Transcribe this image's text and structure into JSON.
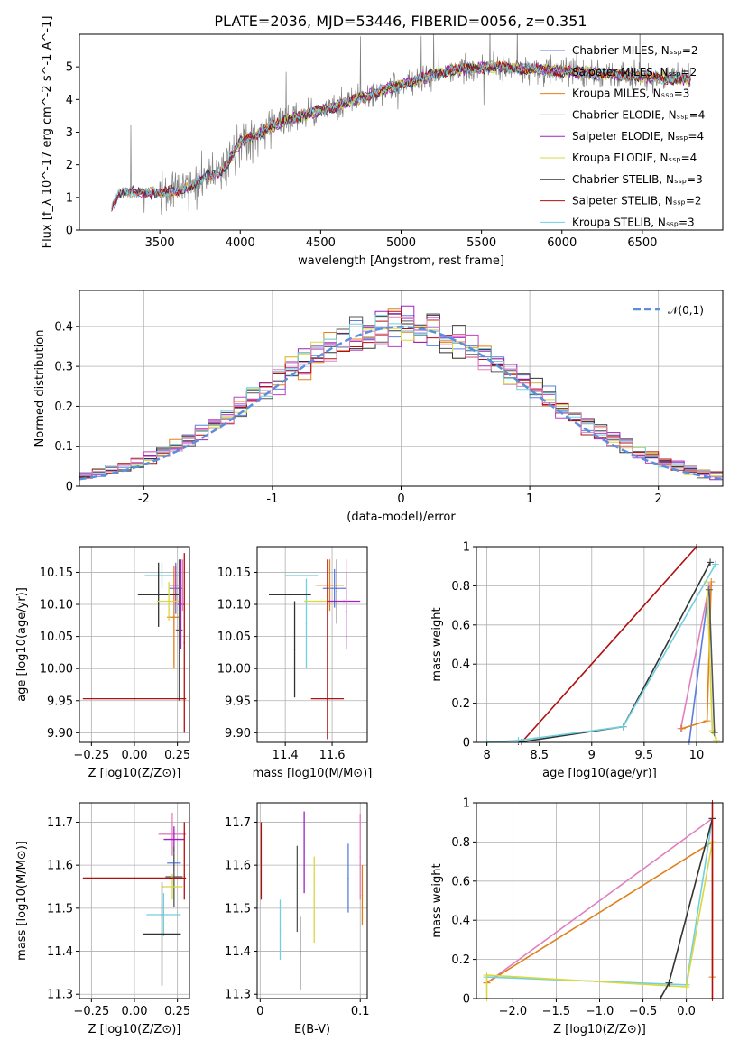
{
  "title": "PLATE=2036, MJD=53446, FIBERID=0056, z=0.351",
  "colors": {
    "chabrier_miles": "#5b7fe0",
    "salpeter_miles": "#c040c0",
    "kroupa_miles": "#e0801a",
    "chabrier_elodie": "#555555",
    "salpeter_elodie": "#a020c0",
    "kroupa_elodie": "#d8d840",
    "chabrier_stelib": "#333333",
    "salpeter_stelib": "#b01010",
    "kroupa_stelib": "#70d0e0",
    "pink": "#e080c0",
    "data": "#808080",
    "normal": "#5b8fdb"
  },
  "chart_data": [
    {
      "type": "line",
      "id": "spectrum",
      "title": "PLATE=2036, MJD=53446, FIBERID=0056, z=0.351",
      "xlabel": "wavelength [Angstrom, rest frame]",
      "ylabel": "Flux [f_λ 10^-17 erg cm^-2 s^-1 A^-1]",
      "xlim": [
        3000,
        7000
      ],
      "ylim": [
        0,
        6
      ],
      "xticks": [
        3500,
        4000,
        4500,
        5000,
        5500,
        6000,
        6500
      ],
      "yticks": [
        0,
        1,
        2,
        3,
        4,
        5
      ],
      "legend_position": "top-right",
      "series": [
        {
          "name": "Chabrier MILES, N_SSP=2"
        },
        {
          "name": "Salpeter MILES, N_SSP=2"
        },
        {
          "name": "Kroupa MILES, N_SSP=3"
        },
        {
          "name": "Chabrier ELODIE, N_SSP=4"
        },
        {
          "name": "Salpeter ELODIE, N_SSP=4"
        },
        {
          "name": "Kroupa ELODIE, N_SSP=4"
        },
        {
          "name": "Chabrier STELIB, N_SSP=3"
        },
        {
          "name": "Salpeter STELIB, N_SSP=2"
        },
        {
          "name": "Kroupa STELIB, N_SSP=3"
        }
      ],
      "continuum": {
        "x": [
          3200,
          3250,
          3400,
          3500,
          3700,
          3900,
          4000,
          4300,
          4600,
          4900,
          5100,
          5300,
          5600,
          5900,
          6200,
          6500,
          6800
        ],
        "y": [
          0.7,
          1.1,
          1.2,
          1.1,
          1.35,
          1.9,
          2.7,
          3.4,
          3.8,
          4.3,
          4.6,
          4.9,
          5.0,
          4.9,
          4.8,
          4.7,
          4.6
        ]
      }
    },
    {
      "type": "bar",
      "id": "residuals",
      "xlabel": "(data-model)/error",
      "ylabel": "Normed distribution",
      "xlim": [
        -2.5,
        2.5
      ],
      "ylim": [
        0,
        0.49
      ],
      "xticks": [
        -2,
        -1,
        0,
        1,
        2
      ],
      "yticks": [
        0.0,
        0.1,
        0.2,
        0.3,
        0.4
      ],
      "legend_position": "top-right",
      "legend": "𝒩(0,1)",
      "bin_width": 0.1
    },
    {
      "type": "scatter",
      "id": "age_vs_Z",
      "xlabel": "Z [log10(Z/Z⊙)]",
      "ylabel": "age  [log10(age/yr)]",
      "xlim": [
        -0.32,
        0.32
      ],
      "ylim": [
        9.885,
        10.19
      ],
      "xticks": [
        -0.25,
        0.0,
        0.25
      ],
      "xticklabels": [
        "−0.25",
        "0.00",
        "0.25"
      ],
      "yticks": [
        9.9,
        9.95,
        10.0,
        10.05,
        10.1,
        10.15
      ],
      "yticklabels": [
        "9.90",
        "9.95",
        "10.00",
        "10.05",
        "10.10",
        "10.15"
      ],
      "points": [
        {
          "series": "kroupa_stelib",
          "x": 0.16,
          "xerr": 0.1,
          "y": 10.145,
          "yerr": 0.02
        },
        {
          "series": "kroupa_miles",
          "x": 0.23,
          "xerr": 0.04,
          "y": 10.08,
          "yerr": 0.08
        },
        {
          "series": "chabrier_miles",
          "x": 0.24,
          "xerr": 0.04,
          "y": 10.125,
          "yerr": 0.04
        },
        {
          "series": "salpeter_miles",
          "x": 0.24,
          "xerr": 0.04,
          "y": 10.13,
          "yerr": 0.03
        },
        {
          "series": "chabrier_stelib",
          "x": 0.14,
          "xerr": 0.12,
          "y": 10.115,
          "yerr": 0.05
        },
        {
          "series": "kroupa_elodie",
          "x": 0.2,
          "xerr": 0.07,
          "y": 10.105,
          "yerr": 0.03
        },
        {
          "series": "chabrier_elodie",
          "x": 0.26,
          "xerr": 0.02,
          "y": 10.06,
          "yerr": 0.11
        },
        {
          "series": "salpeter_elodie",
          "x": 0.27,
          "xerr": 0.02,
          "y": 10.1,
          "yerr": 0.07
        },
        {
          "series": "salpeter_stelib",
          "x": 0.0,
          "xerr": 0.3,
          "y": 9.953,
          "yerr": 0.0
        },
        {
          "series": "salpeter_stelib",
          "x": 0.29,
          "xerr": 0.0,
          "y": 10.04,
          "yerr": 0.14
        },
        {
          "series": "pink",
          "x": 0.28,
          "xerr": 0.02,
          "y": 10.13,
          "yerr": 0.04
        }
      ]
    },
    {
      "type": "scatter",
      "id": "age_vs_mass",
      "xlabel": "mass [log10(M/M⊙)]",
      "ylabel": "",
      "xlim": [
        11.28,
        11.75
      ],
      "ylim": [
        9.885,
        10.19
      ],
      "xticks": [
        11.4,
        11.6
      ],
      "yticks": [
        9.9,
        9.95,
        10.0,
        10.05,
        10.1,
        10.15
      ],
      "yticklabels": [
        "9.90",
        "9.95",
        "10.00",
        "10.05",
        "10.10",
        "10.15"
      ],
      "points": [
        {
          "series": "kroupa_stelib",
          "x": 11.47,
          "xerr": 0.07,
          "y": 10.145,
          "yerr": 0.0
        },
        {
          "series": "kroupa_stelib",
          "x": 11.49,
          "xerr": 0.0,
          "y": 10.07,
          "yerr": 0.07
        },
        {
          "series": "chabrier_stelib",
          "x": 11.42,
          "xerr": 0.09,
          "y": 10.115,
          "yerr": 0.0
        },
        {
          "series": "chabrier_stelib",
          "x": 11.44,
          "xerr": 0.0,
          "y": 10.03,
          "yerr": 0.075
        },
        {
          "series": "kroupa_elodie",
          "x": 11.55,
          "xerr": 0.07,
          "y": 10.105,
          "yerr": 0.0
        },
        {
          "series": "chabrier_miles",
          "x": 11.61,
          "xerr": 0.05,
          "y": 10.125,
          "yerr": 0.03
        },
        {
          "series": "kroupa_miles",
          "x": 11.59,
          "xerr": 0.06,
          "y": 10.13,
          "yerr": 0.04
        },
        {
          "series": "salpeter_elodie",
          "x": 11.65,
          "xerr": 0.07,
          "y": 10.105,
          "yerr": 0.0
        },
        {
          "series": "salpeter_elodie",
          "x": 11.66,
          "xerr": 0.0,
          "y": 10.09,
          "yerr": 0.06
        },
        {
          "series": "pink",
          "x": 11.66,
          "xerr": 0.0,
          "y": 10.13,
          "yerr": 0.04
        },
        {
          "series": "chabrier_elodie",
          "x": 11.62,
          "xerr": 0.0,
          "y": 10.12,
          "yerr": 0.05
        },
        {
          "series": "salpeter_stelib",
          "x": 11.58,
          "xerr": 0.07,
          "y": 9.953,
          "yerr": 0.0
        },
        {
          "series": "salpeter_stelib",
          "x": 11.58,
          "xerr": 0.0,
          "y": 10.03,
          "yerr": 0.14
        }
      ]
    },
    {
      "type": "line",
      "id": "weight_vs_age",
      "xlabel": "age  [log10(age/yr)]",
      "ylabel": "mass weight",
      "xlim": [
        7.9,
        10.25
      ],
      "ylim": [
        0,
        1.0
      ],
      "xticks": [
        8.0,
        8.5,
        9.0,
        9.5,
        10.0
      ],
      "yticks": [
        0.0,
        0.2,
        0.4,
        0.6,
        0.8,
        1.0
      ],
      "series": [
        {
          "color": "salpeter_stelib",
          "x": [
            8.33,
            10.0
          ],
          "y": [
            0.0,
            1.0
          ]
        },
        {
          "color": "chabrier_stelib",
          "x": [
            8.3,
            9.3,
            10.13
          ],
          "y": [
            0.0,
            0.08,
            0.92
          ]
        },
        {
          "color": "kroupa_stelib",
          "x": [
            8.0,
            8.3,
            9.3,
            10.18
          ],
          "y": [
            0.0,
            0.01,
            0.08,
            0.91
          ]
        },
        {
          "color": "chabrier_miles",
          "x": [
            9.93,
            10.12
          ],
          "y": [
            0.0,
            0.8
          ]
        },
        {
          "color": "pink",
          "x": [
            9.85,
            10.12
          ],
          "y": [
            0.07,
            0.8
          ]
        },
        {
          "color": "kroupa_miles",
          "x": [
            9.86,
            10.1,
            10.14
          ],
          "y": [
            0.07,
            0.11,
            0.82
          ]
        },
        {
          "color": "kroupa_elodie",
          "x": [
            10.1,
            10.15,
            10.19
          ],
          "y": [
            0.82,
            0.06,
            0.01
          ]
        },
        {
          "color": "chabrier_elodie",
          "x": [
            10.12,
            10.17
          ],
          "y": [
            0.78,
            0.05
          ]
        }
      ]
    },
    {
      "type": "scatter",
      "id": "mass_vs_Z",
      "xlabel": "Z [log10(Z/Z⊙)]",
      "ylabel": "mass [log10(M/M⊙)]",
      "xlim": [
        -0.32,
        0.32
      ],
      "ylim": [
        11.29,
        11.745
      ],
      "xticks": [
        -0.25,
        0.0,
        0.25
      ],
      "xticklabels": [
        "−0.25",
        "0.00",
        "0.25"
      ],
      "yticks": [
        11.3,
        11.4,
        11.5,
        11.6,
        11.7
      ],
      "points": [
        {
          "series": "pink",
          "x": 0.22,
          "xerr": 0.08,
          "y": 11.672,
          "yerr": 0.05
        },
        {
          "series": "salpeter_elodie",
          "x": 0.23,
          "xerr": 0.06,
          "y": 11.66,
          "yerr": 0.03
        },
        {
          "series": "chabrier_miles",
          "x": 0.23,
          "xerr": 0.04,
          "y": 11.605,
          "yerr": 0.02
        },
        {
          "series": "chabrier_elodie",
          "x": 0.23,
          "xerr": 0.05,
          "y": 11.573,
          "yerr": 0.07
        },
        {
          "series": "kroupa_elodie",
          "x": 0.22,
          "xerr": 0.06,
          "y": 11.55,
          "yerr": 0.03
        },
        {
          "series": "kroupa_stelib",
          "x": 0.17,
          "xerr": 0.1,
          "y": 11.485,
          "yerr": 0.05
        },
        {
          "series": "chabrier_stelib",
          "x": 0.16,
          "xerr": 0.11,
          "y": 11.44,
          "yerr": 0.12
        },
        {
          "series": "salpeter_stelib",
          "x": 0.0,
          "xerr": 0.3,
          "y": 11.57,
          "yerr": 0.0
        },
        {
          "series": "salpeter_stelib",
          "x": 0.29,
          "xerr": 0.0,
          "y": 11.61,
          "yerr": 0.09
        }
      ]
    },
    {
      "type": "scatter",
      "id": "mass_vs_EBV",
      "xlabel": "E(B-V)",
      "ylabel": "",
      "xlim": [
        -0.003,
        0.107
      ],
      "ylim": [
        11.29,
        11.745
      ],
      "xticks": [
        0.0,
        0.1
      ],
      "yticks": [
        11.3,
        11.4,
        11.5,
        11.6,
        11.7
      ],
      "points": [
        {
          "series": "salpeter_stelib",
          "x": 0.001,
          "y": 11.61,
          "yerr": 0.09
        },
        {
          "series": "kroupa_stelib",
          "x": 0.02,
          "y": 11.45,
          "yerr": 0.07
        },
        {
          "series": "chabrier_elodie",
          "x": 0.037,
          "y": 11.545,
          "yerr": 0.1
        },
        {
          "series": "chabrier_stelib",
          "x": 0.04,
          "y": 11.395,
          "yerr": 0.085
        },
        {
          "series": "salpeter_elodie",
          "x": 0.044,
          "y": 11.63,
          "yerr": 0.095
        },
        {
          "series": "kroupa_elodie",
          "x": 0.054,
          "y": 11.52,
          "yerr": 0.1
        },
        {
          "series": "chabrier_miles",
          "x": 0.088,
          "y": 11.57,
          "yerr": 0.08
        },
        {
          "series": "pink",
          "x": 0.1,
          "y": 11.62,
          "yerr": 0.1
        },
        {
          "series": "kroupa_miles",
          "x": 0.102,
          "y": 11.53,
          "yerr": 0.07
        }
      ]
    },
    {
      "type": "line",
      "id": "weight_vs_Z",
      "xlabel": "Z [log10(Z/Z⊙)]",
      "ylabel": "mass weight",
      "xlim": [
        -2.42,
        0.42
      ],
      "ylim": [
        0,
        1.0
      ],
      "xticks": [
        -2.0,
        -1.5,
        -1.0,
        -0.5,
        0.0
      ],
      "xticklabels": [
        "−2.0",
        "−1.5",
        "−1.0",
        "−0.5",
        "0.0"
      ],
      "yticks": [
        0.0,
        0.2,
        0.4,
        0.6,
        0.8,
        1.0
      ],
      "series": [
        {
          "color": "pink",
          "x": [
            -2.3,
            0.3
          ],
          "y": [
            0.08,
            0.92
          ]
        },
        {
          "color": "kroupa_miles",
          "x": [
            -2.3,
            0.3,
            0.3
          ],
          "y": [
            0.08,
            0.8,
            0.11
          ]
        },
        {
          "color": "kroupa_stelib",
          "x": [
            -2.3,
            0.0,
            0.3
          ],
          "y": [
            0.11,
            0.07,
            0.92
          ]
        },
        {
          "color": "kroupa_elodie",
          "x": [
            -2.3,
            -2.3,
            0.0,
            0.3
          ],
          "y": [
            0.0,
            0.12,
            0.06,
            0.8
          ]
        },
        {
          "color": "chabrier_stelib",
          "x": [
            -0.3,
            -0.2,
            0.3
          ],
          "y": [
            0.0,
            0.08,
            0.92
          ]
        },
        {
          "color": "salpeter_stelib",
          "x": [
            0.3,
            0.3
          ],
          "y": [
            0.0,
            1.0
          ]
        }
      ]
    }
  ]
}
